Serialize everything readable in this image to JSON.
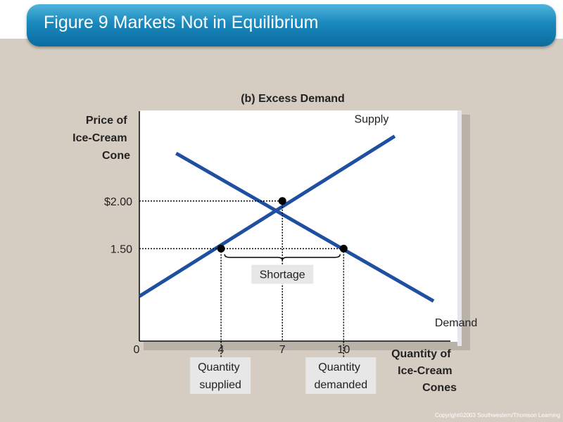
{
  "slide": {
    "title": "Figure 9 Markets Not in Equilibrium",
    "copyright": "Copyright©2003  Southwestern/Thomson Learning"
  },
  "colors": {
    "curve": "#1e4fa0",
    "title_bar": "#1a88bd",
    "background": "#d5cdc2",
    "plot": "#ffffff"
  },
  "chart_data": {
    "type": "line",
    "title": "(b) Excess Demand",
    "ylabel_lines": [
      "Price of",
      "Ice-Cream",
      "Cone"
    ],
    "xlabel_lines": [
      "Quantity of",
      "Ice-Cream",
      "Cones"
    ],
    "series": [
      {
        "name": "Supply",
        "points": [
          [
            0,
            1.0
          ],
          [
            12.5,
            2.68
          ]
        ]
      },
      {
        "name": "Demand",
        "points": [
          [
            1.8,
            2.5
          ],
          [
            14.4,
            0.95
          ]
        ]
      }
    ],
    "equilibrium": {
      "quantity": 7,
      "price": 2.0
    },
    "market_price": 1.5,
    "quantity_supplied": 4,
    "quantity_demanded": 10,
    "price_ticks": [
      {
        "value": 2.0,
        "label": "$2.00"
      },
      {
        "value": 1.5,
        "label": "1.50"
      }
    ],
    "quantity_ticks": [
      {
        "value": 0,
        "label": "0"
      },
      {
        "value": 4,
        "label": "4"
      },
      {
        "value": 7,
        "label": "7"
      },
      {
        "value": 10,
        "label": "10"
      }
    ],
    "shortage_label": "Shortage",
    "qs_label_lines": [
      "Quantity",
      "supplied"
    ],
    "qd_label_lines": [
      "Quantity",
      "demanded"
    ],
    "xlim": [
      0,
      15.5
    ],
    "ylim": [
      0.53,
      2.95
    ],
    "grid": false
  }
}
